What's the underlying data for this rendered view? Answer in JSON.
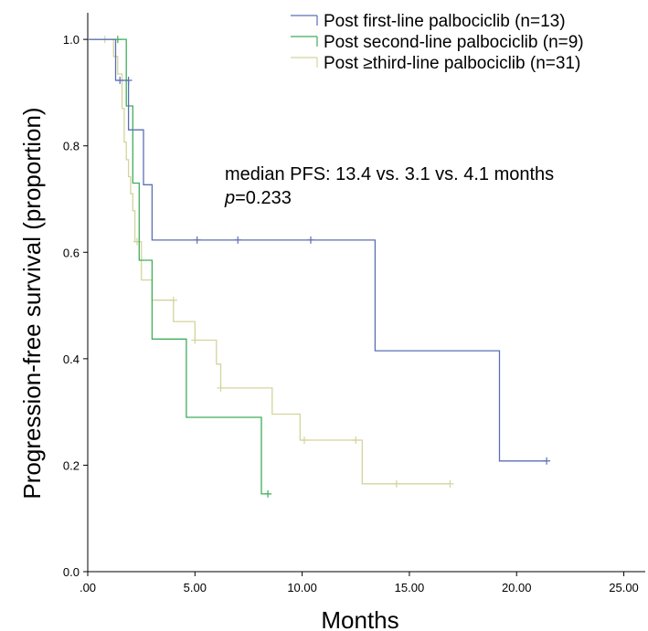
{
  "chart_data": {
    "type": "line",
    "subtype": "kaplan-meier",
    "xlabel": "Months",
    "ylabel": "Progression-free survival (proportion)",
    "xlim": [
      0,
      26
    ],
    "ylim": [
      0,
      1.05
    ],
    "xticks": [
      0,
      5,
      10,
      15,
      20,
      25
    ],
    "xtick_labels": [
      ".00",
      "5.00",
      "10.00",
      "15.00",
      "20.00",
      "25.00"
    ],
    "yticks": [
      0,
      0.2,
      0.4,
      0.6,
      0.8,
      1.0
    ],
    "ytick_labels": [
      "0.0",
      "0.2",
      "0.4",
      "0.6",
      "0.8",
      "1.0"
    ],
    "grid": false,
    "legend_position": "top-right",
    "annotations": {
      "median": "median PFS: 13.4 vs. 3.1 vs. 4.1 months",
      "p_label": "p",
      "p_value": "=0.233"
    },
    "series": [
      {
        "name": "Post first-line palbociclib (n=13)",
        "color": "#5b6fb5",
        "steps": [
          [
            0,
            1.0
          ],
          [
            1.3,
            1.0
          ],
          [
            1.3,
            0.923
          ],
          [
            1.9,
            0.923
          ],
          [
            1.9,
            0.83
          ],
          [
            2.6,
            0.83
          ],
          [
            2.6,
            0.727
          ],
          [
            3.0,
            0.727
          ],
          [
            3.0,
            0.623
          ],
          [
            13.4,
            0.623
          ],
          [
            13.4,
            0.415
          ],
          [
            19.2,
            0.415
          ],
          [
            19.2,
            0.208
          ],
          [
            21.4,
            0.208
          ]
        ],
        "censored": [
          [
            1.5,
            0.923
          ],
          [
            1.9,
            0.923
          ],
          [
            5.1,
            0.623
          ],
          [
            7.0,
            0.623
          ],
          [
            10.4,
            0.623
          ],
          [
            21.4,
            0.208
          ]
        ]
      },
      {
        "name": "Post second-line palbociclib (n=9)",
        "color": "#3fae5a",
        "steps": [
          [
            0,
            1.0
          ],
          [
            1.8,
            1.0
          ],
          [
            1.8,
            0.875
          ],
          [
            2.1,
            0.875
          ],
          [
            2.1,
            0.73
          ],
          [
            2.4,
            0.73
          ],
          [
            2.4,
            0.585
          ],
          [
            3.0,
            0.585
          ],
          [
            3.0,
            0.437
          ],
          [
            4.6,
            0.437
          ],
          [
            4.6,
            0.29
          ],
          [
            8.1,
            0.29
          ],
          [
            8.1,
            0.146
          ],
          [
            8.4,
            0.146
          ]
        ],
        "censored": [
          [
            1.4,
            1.0
          ],
          [
            8.4,
            0.146
          ]
        ]
      },
      {
        "name": "Post ≥third-line palbociclib (n=31)",
        "color": "#d4d49c",
        "steps": [
          [
            0,
            1.0
          ],
          [
            1.2,
            1.0
          ],
          [
            1.2,
            0.968
          ],
          [
            1.4,
            0.968
          ],
          [
            1.4,
            0.935
          ],
          [
            1.6,
            0.935
          ],
          [
            1.6,
            0.87
          ],
          [
            1.7,
            0.87
          ],
          [
            1.7,
            0.807
          ],
          [
            1.8,
            0.807
          ],
          [
            1.8,
            0.774
          ],
          [
            1.9,
            0.774
          ],
          [
            1.9,
            0.742
          ],
          [
            2.0,
            0.742
          ],
          [
            2.0,
            0.71
          ],
          [
            2.1,
            0.71
          ],
          [
            2.1,
            0.678
          ],
          [
            2.2,
            0.678
          ],
          [
            2.2,
            0.62
          ],
          [
            2.5,
            0.62
          ],
          [
            2.5,
            0.548
          ],
          [
            3.0,
            0.548
          ],
          [
            3.0,
            0.51
          ],
          [
            4.0,
            0.51
          ],
          [
            4.0,
            0.47
          ],
          [
            5.0,
            0.47
          ],
          [
            5.0,
            0.435
          ],
          [
            6.0,
            0.435
          ],
          [
            6.0,
            0.39
          ],
          [
            6.2,
            0.39
          ],
          [
            6.2,
            0.345
          ],
          [
            8.6,
            0.345
          ],
          [
            8.6,
            0.296
          ],
          [
            9.9,
            0.296
          ],
          [
            9.9,
            0.247
          ],
          [
            12.8,
            0.247
          ],
          [
            12.8,
            0.165
          ],
          [
            16.9,
            0.165
          ]
        ],
        "censored": [
          [
            0.8,
            1.0
          ],
          [
            2.3,
            0.62
          ],
          [
            4.0,
            0.51
          ],
          [
            5.0,
            0.435
          ],
          [
            6.2,
            0.345
          ],
          [
            10.1,
            0.247
          ],
          [
            12.5,
            0.247
          ],
          [
            14.4,
            0.165
          ],
          [
            16.9,
            0.165
          ]
        ]
      }
    ]
  }
}
